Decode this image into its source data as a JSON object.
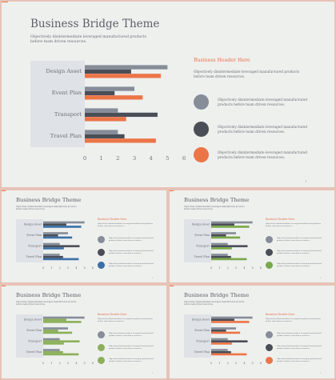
{
  "slide": {
    "title": "Business Bridge Theme",
    "subtitle": "Objectively disintermediate leveraged manufactured products before team driven resources.",
    "header": "Business Header Here",
    "header_sub": "Objectively disintermediate leveraged manufactured products before team driven resources.",
    "legend": [
      {
        "text": "Objectively disintermediate leveraged manufactured products before team driven resources."
      },
      {
        "text": "Objectively disintermediate leveraged manufactured products before team driven resources."
      },
      {
        "text": "Objectively disintermediate leveraged manufactured products before team driven resources."
      }
    ],
    "page_number": "1"
  },
  "colors": {
    "series_gray": "#868d99",
    "series_dark": "#4a4e57",
    "variants_third": [
      "#ec7547",
      "#3b70a8",
      "#79a84a",
      "#ec7547"
    ],
    "variants_second": [
      "#4a4e57",
      "#4a4e57",
      "#4a4e57",
      "#4a4e57"
    ],
    "variant_small3_second": "#8bb05a",
    "variant_small3_third": "#8bb05a"
  },
  "chart_data": {
    "type": "bar",
    "orientation": "horizontal",
    "categories": [
      "Design Asset",
      "Event Plan",
      "Transport",
      "Travel Plan"
    ],
    "series": [
      {
        "values": [
          5.0,
          3.0,
          2.0,
          2.0
        ]
      },
      {
        "values": [
          2.8,
          1.8,
          4.4,
          2.4
        ]
      },
      {
        "values": [
          4.6,
          3.5,
          2.5,
          4.3
        ]
      }
    ],
    "xlim": [
      0,
      6
    ],
    "xticks": [
      "0",
      "1",
      "2",
      "3",
      "4",
      "5",
      "6"
    ],
    "grid": false
  }
}
